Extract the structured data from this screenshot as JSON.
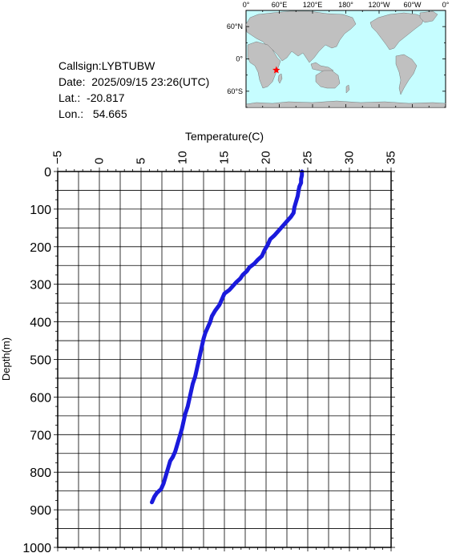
{
  "station": {
    "callsign_label": "Callsign:",
    "callsign": "LYBTUBW",
    "date_label": "Date:",
    "date": "2025/09/15 23:26(UTC)",
    "lat_label": "Lat.:",
    "lat": "-20.817",
    "lon_label": "Lon.:",
    "lon": "54.665"
  },
  "map": {
    "top_ticks": [
      "0°",
      "60°E",
      "120°E",
      "180°",
      "120°W",
      "60°W",
      "0°"
    ],
    "left_ticks": [
      "60°N",
      "0°",
      "60°S"
    ],
    "ocean_color": "#c6fdff",
    "land_color": "#c0c0c0",
    "marker_color": "#ff0000",
    "marker_lat": -20.817,
    "marker_lon": 54.665,
    "marker_icon": "star-icon"
  },
  "chart_data": {
    "type": "line",
    "xlabel": "Temperature(C)",
    "ylabel": "Depth(m)",
    "xlim": [
      -5,
      35
    ],
    "ylim": [
      1000,
      0
    ],
    "x_ticks": [
      -5,
      0,
      5,
      10,
      15,
      20,
      25,
      30,
      35
    ],
    "y_ticks": [
      0,
      100,
      200,
      300,
      400,
      500,
      600,
      700,
      800,
      900,
      1000
    ],
    "grid": true,
    "series": [
      {
        "color": "#1a1adc",
        "points": [
          [
            24.3,
            0
          ],
          [
            24.3,
            10
          ],
          [
            24.2,
            20
          ],
          [
            24.2,
            30
          ],
          [
            24.0,
            40
          ],
          [
            23.9,
            50
          ],
          [
            23.8,
            65
          ],
          [
            23.6,
            80
          ],
          [
            23.4,
            95
          ],
          [
            23.3,
            110
          ],
          [
            23.0,
            120
          ],
          [
            22.6,
            130
          ],
          [
            22.2,
            140
          ],
          [
            21.8,
            150
          ],
          [
            21.4,
            160
          ],
          [
            21.0,
            170
          ],
          [
            20.5,
            180
          ],
          [
            20.2,
            195
          ],
          [
            19.8,
            210
          ],
          [
            19.5,
            225
          ],
          [
            19.0,
            235
          ],
          [
            18.6,
            245
          ],
          [
            18.0,
            255
          ],
          [
            17.7,
            265
          ],
          [
            17.2,
            275
          ],
          [
            16.9,
            285
          ],
          [
            16.4,
            295
          ],
          [
            16.0,
            305
          ],
          [
            15.6,
            315
          ],
          [
            15.0,
            325
          ],
          [
            14.7,
            340
          ],
          [
            14.4,
            355
          ],
          [
            13.9,
            370
          ],
          [
            13.5,
            385
          ],
          [
            13.3,
            400
          ],
          [
            13.0,
            415
          ],
          [
            12.7,
            430
          ],
          [
            12.5,
            445
          ],
          [
            12.3,
            465
          ],
          [
            12.1,
            485
          ],
          [
            11.9,
            505
          ],
          [
            11.7,
            525
          ],
          [
            11.5,
            545
          ],
          [
            11.2,
            565
          ],
          [
            11.0,
            585
          ],
          [
            10.8,
            605
          ],
          [
            10.6,
            625
          ],
          [
            10.3,
            645
          ],
          [
            10.1,
            665
          ],
          [
            9.9,
            685
          ],
          [
            9.7,
            700
          ],
          [
            9.5,
            715
          ],
          [
            9.3,
            730
          ],
          [
            9.1,
            745
          ],
          [
            8.8,
            760
          ],
          [
            8.5,
            770
          ],
          [
            8.3,
            785
          ],
          [
            8.1,
            800
          ],
          [
            7.9,
            815
          ],
          [
            7.7,
            830
          ],
          [
            7.4,
            845
          ],
          [
            6.9,
            855
          ],
          [
            6.6,
            865
          ],
          [
            6.3,
            880
          ]
        ]
      }
    ]
  }
}
